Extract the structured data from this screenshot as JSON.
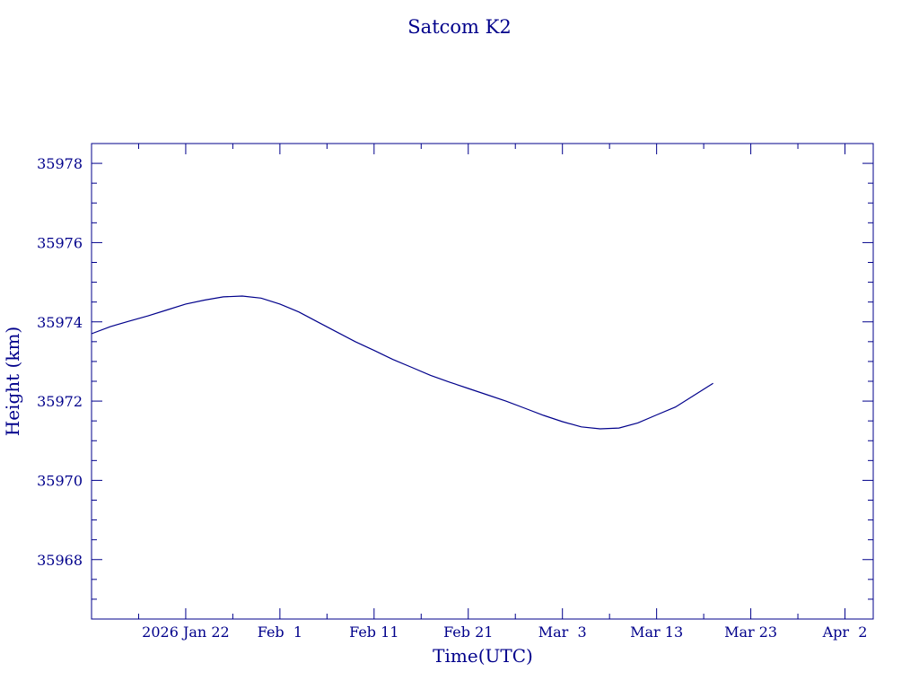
{
  "chart_data": {
    "type": "line",
    "title": "Satcom K2",
    "xlabel": "Time(UTC)",
    "ylabel": "Height (km)",
    "x_type": "date",
    "xlim": [
      "2026-01-12",
      "2026-04-05"
    ],
    "ylim": [
      35966.5,
      35978.5
    ],
    "x_ticks": [
      {
        "date": "2026-01-22",
        "label": "2026 Jan 22"
      },
      {
        "date": "2026-02-01",
        "label": "Feb  1"
      },
      {
        "date": "2026-02-11",
        "label": "Feb 11"
      },
      {
        "date": "2026-02-21",
        "label": "Feb 21"
      },
      {
        "date": "2026-03-03",
        "label": "Mar  3"
      },
      {
        "date": "2026-03-13",
        "label": "Mar 13"
      },
      {
        "date": "2026-03-23",
        "label": "Mar 23"
      },
      {
        "date": "2026-04-02",
        "label": "Apr  2"
      }
    ],
    "y_ticks": [
      35968,
      35970,
      35972,
      35974,
      35976,
      35978
    ],
    "color": "#00008b",
    "grid": false,
    "series": [
      {
        "x": [
          "2026-01-12",
          "2026-01-14",
          "2026-01-16",
          "2026-01-18",
          "2026-01-20",
          "2026-01-22",
          "2026-01-24",
          "2026-01-26",
          "2026-01-28",
          "2026-01-30",
          "2026-02-01",
          "2026-02-03",
          "2026-02-05",
          "2026-02-07",
          "2026-02-09",
          "2026-02-11",
          "2026-02-13",
          "2026-02-15",
          "2026-02-17",
          "2026-02-19",
          "2026-02-21",
          "2026-02-23",
          "2026-02-25",
          "2026-02-27",
          "2026-03-01",
          "2026-03-03",
          "2026-03-05",
          "2026-03-07",
          "2026-03-09",
          "2026-03-11",
          "2026-03-13",
          "2026-03-15",
          "2026-03-17",
          "2026-03-19"
        ],
        "y": [
          35973.7,
          35973.88,
          35974.02,
          35974.15,
          35974.3,
          35974.45,
          35974.55,
          35974.63,
          35974.65,
          35974.6,
          35974.45,
          35974.25,
          35974.0,
          35973.75,
          35973.5,
          35973.28,
          35973.05,
          35972.85,
          35972.65,
          35972.48,
          35972.32,
          35972.16,
          35972.0,
          35971.82,
          35971.64,
          35971.48,
          35971.35,
          35971.3,
          35971.32,
          35971.45,
          35971.65,
          35971.85,
          35972.15,
          35972.45
        ]
      }
    ]
  }
}
